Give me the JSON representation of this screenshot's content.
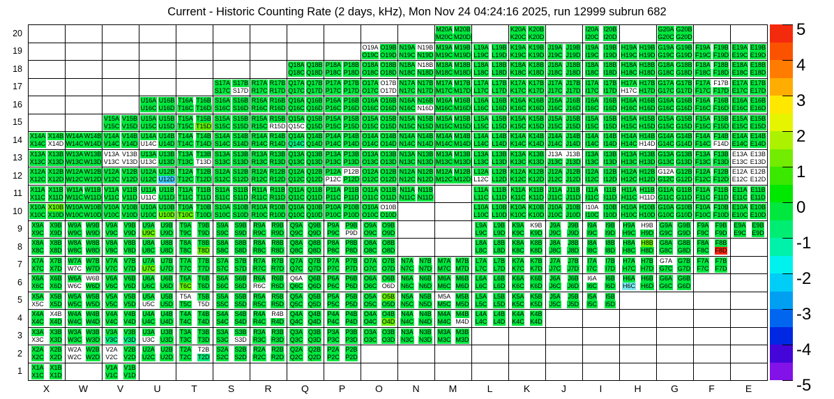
{
  "chart_data": {
    "type": "heatmap",
    "title": "Current - Historic Counting Rate (2 days, kHz), Mon Nov 24 04:24:16 2025, run 12999 subrun 682",
    "x_categories": [
      "X",
      "W",
      "V",
      "U",
      "T",
      "S",
      "R",
      "Q",
      "P",
      "O",
      "N",
      "M",
      "L",
      "K",
      "J",
      "I",
      "H",
      "G",
      "F",
      "E"
    ],
    "y_categories": [
      20,
      19,
      18,
      17,
      16,
      15,
      14,
      13,
      12,
      11,
      10,
      9,
      8,
      7,
      6,
      5,
      4,
      3,
      2,
      1
    ],
    "cell_suffixes": [
      [
        "A",
        "B"
      ],
      [
        "C",
        "D"
      ]
    ],
    "occupancy": {
      "20": [
        "M",
        "K",
        "I",
        "G"
      ],
      "19": [
        "O",
        "N",
        "M",
        "L",
        "K",
        "J",
        "I",
        "H",
        "G",
        "F",
        "E"
      ],
      "18": [
        "Q",
        "P",
        "O",
        "N",
        "M",
        "L",
        "K",
        "J",
        "I",
        "H",
        "G",
        "F",
        "E"
      ],
      "17": [
        "S",
        "R",
        "Q",
        "P",
        "O",
        "N",
        "M",
        "L",
        "K",
        "J",
        "I",
        "H",
        "G",
        "F",
        "E"
      ],
      "16": [
        "U",
        "T",
        "S",
        "R",
        "Q",
        "P",
        "O",
        "N",
        "M",
        "L",
        "K",
        "J",
        "I",
        "H",
        "G",
        "F",
        "E"
      ],
      "15": [
        "V",
        "U",
        "T",
        "S",
        "R",
        "Q",
        "P",
        "O",
        "N",
        "M",
        "L",
        "K",
        "J",
        "I",
        "H",
        "G",
        "F",
        "E"
      ],
      "14": [
        "X",
        "W",
        "V",
        "U",
        "T",
        "S",
        "R",
        "Q",
        "P",
        "O",
        "N",
        "M",
        "L",
        "K",
        "J",
        "I",
        "H",
        "G",
        "F",
        "E"
      ],
      "13": [
        "X",
        "W",
        "V",
        "U",
        "T",
        "S",
        "R",
        "Q",
        "P",
        "O",
        "N",
        "M",
        "L",
        "K",
        "J",
        "I",
        "H",
        "G",
        "F",
        "E"
      ],
      "12": [
        "X",
        "W",
        "V",
        "U",
        "T",
        "S",
        "R",
        "Q",
        "P",
        "O",
        "N",
        "M",
        "L",
        "K",
        "J",
        "I",
        "H",
        "G",
        "F",
        "E"
      ],
      "11": [
        "X",
        "W",
        "V",
        "U",
        "T",
        "S",
        "R",
        "Q",
        "P",
        "O",
        "N",
        "L",
        "K",
        "J",
        "I",
        "H",
        "G",
        "F",
        "E"
      ],
      "10": [
        "X",
        "W",
        "V",
        "U",
        "T",
        "S",
        "R",
        "Q",
        "P",
        "O",
        "L",
        "K",
        "J",
        "I",
        "H",
        "G",
        "F",
        "E"
      ],
      "9": [
        "X",
        "W",
        "V",
        "U",
        "T",
        "S",
        "R",
        "Q",
        "P",
        "O",
        "L",
        "K",
        "J",
        "I",
        "H",
        "G",
        "F",
        "E"
      ],
      "8": [
        "X",
        "W",
        "V",
        "U",
        "T",
        "S",
        "R",
        "Q",
        "P",
        "O",
        "L",
        "K",
        "J",
        "I",
        "H",
        "G",
        "F"
      ],
      "7": [
        "X",
        "W",
        "V",
        "U",
        "T",
        "S",
        "R",
        "Q",
        "P",
        "O",
        "N",
        "M",
        "L",
        "K",
        "J",
        "I",
        "H",
        "G",
        "F"
      ],
      "6": [
        "X",
        "W",
        "V",
        "U",
        "T",
        "S",
        "R",
        "Q",
        "P",
        "O",
        "N",
        "M",
        "L",
        "K",
        "J",
        "I",
        "H",
        "G"
      ],
      "5": [
        "X",
        "W",
        "V",
        "U",
        "T",
        "S",
        "R",
        "Q",
        "P",
        "O",
        "N",
        "M",
        "L",
        "K",
        "J",
        "I"
      ],
      "4": [
        "X",
        "W",
        "V",
        "U",
        "T",
        "S",
        "R",
        "Q",
        "P",
        "O",
        "N",
        "M",
        "L",
        "K"
      ],
      "3": [
        "X",
        "W",
        "V",
        "U",
        "T",
        "S",
        "R",
        "Q",
        "P",
        "O",
        "N",
        "M"
      ],
      "2": [
        "X",
        "W",
        "V",
        "U",
        "T",
        "S",
        "R",
        "Q",
        "P"
      ],
      "1": [
        "X",
        "V"
      ]
    },
    "default_class": "green",
    "classes": {
      "green": {
        "hex": "#00E63E",
        "approx_value": 0.2
      },
      "yg": {
        "hex": "#62F000",
        "approx_value": 1
      },
      "sg": {
        "hex": "#00EC7A",
        "approx_value": -0.8
      },
      "cyan": {
        "hex": "#3CC9F2",
        "approx_value": -2.2
      },
      "lightcyan": {
        "hex": "#7DE9F0",
        "approx_value": -1.6
      },
      "red": {
        "hex": "#F5270F",
        "approx_value": 5
      },
      "white": {
        "hex": "#FFFFFF",
        "approx_value": null
      }
    },
    "exceptions": {
      "O19A": "white",
      "N19B": "white",
      "N18B": "white",
      "S17D": "white",
      "O17B": "white",
      "O17D": "white",
      "H17C": "white",
      "F17B": "white",
      "N16D": "white",
      "R15D": "white",
      "Q15C": "white",
      "T15D": "yg",
      "X14D": "white",
      "U14C": "white",
      "H14D": "white",
      "F14D": "white",
      "Q14C": "sg",
      "V13A": "white",
      "V13B": "white",
      "V13C": "white",
      "V13D": "white",
      "U13C": "white",
      "T13D": "white",
      "J13A": "white",
      "J13B": "white",
      "E13A": "white",
      "E13B": "white",
      "E13C": "white",
      "E13D": "white",
      "U12D": "cyan",
      "P12B": "white",
      "P12C": "white",
      "L12C": "white",
      "G12A": "white",
      "E12A": "white",
      "E12B": "white",
      "E12C": "white",
      "E12D": "white",
      "U11C": "white",
      "H11D": "white",
      "X10B": "yg",
      "U10D": "yg",
      "T10C": "yg",
      "O10B": "white",
      "I10A": "white",
      "U9C": "yg",
      "P9D": "white",
      "K9B": "white",
      "H9B": "white",
      "T8D": "yg",
      "H8B": "yg",
      "F8D": "red",
      "W7C": "white",
      "U7C": "yg",
      "G7A": "white",
      "W6B": "white",
      "W6C": "white",
      "T6C": "yg",
      "R6C": "white",
      "Q6A": "white",
      "O6D": "white",
      "I6A": "white",
      "H6C": "lightcyan",
      "X5C": "white",
      "U5C": "white",
      "T5A": "white",
      "T5D": "white",
      "O5B": "yg",
      "M5A": "white",
      "X4B": "white",
      "R4B": "white",
      "O4D": "yg",
      "M4D": "white",
      "X3C": "white",
      "V3C": "sg",
      "V3D": "sg",
      "U3C": "white",
      "S3D": "white",
      "W2A": "white",
      "W2C": "white",
      "V2A": "white",
      "V2C": "white",
      "T2B": "white",
      "T2D": "sg"
    },
    "colorbar": {
      "min": -5,
      "max": 5,
      "tick_labels": [
        "5",
        "4",
        "3",
        "2",
        "1",
        "0",
        "-1",
        "-2",
        "-3",
        "-4",
        "-5"
      ],
      "segments_top_to_bottom": [
        "#F42A0D",
        "#FB5200",
        "#FF7C00",
        "#FFAD00",
        "#FFE800",
        "#E6F400",
        "#ACF200",
        "#72EC00",
        "#3BE800",
        "#00E700",
        "#00E83E",
        "#00ED73",
        "#00F1A9",
        "#00F2EE",
        "#00CEF6",
        "#009FF2",
        "#0066F0",
        "#0027E2",
        "#4406D8",
        "#8312E8"
      ]
    },
    "layout": {
      "grid_on": true,
      "legend_position": "right"
    }
  }
}
